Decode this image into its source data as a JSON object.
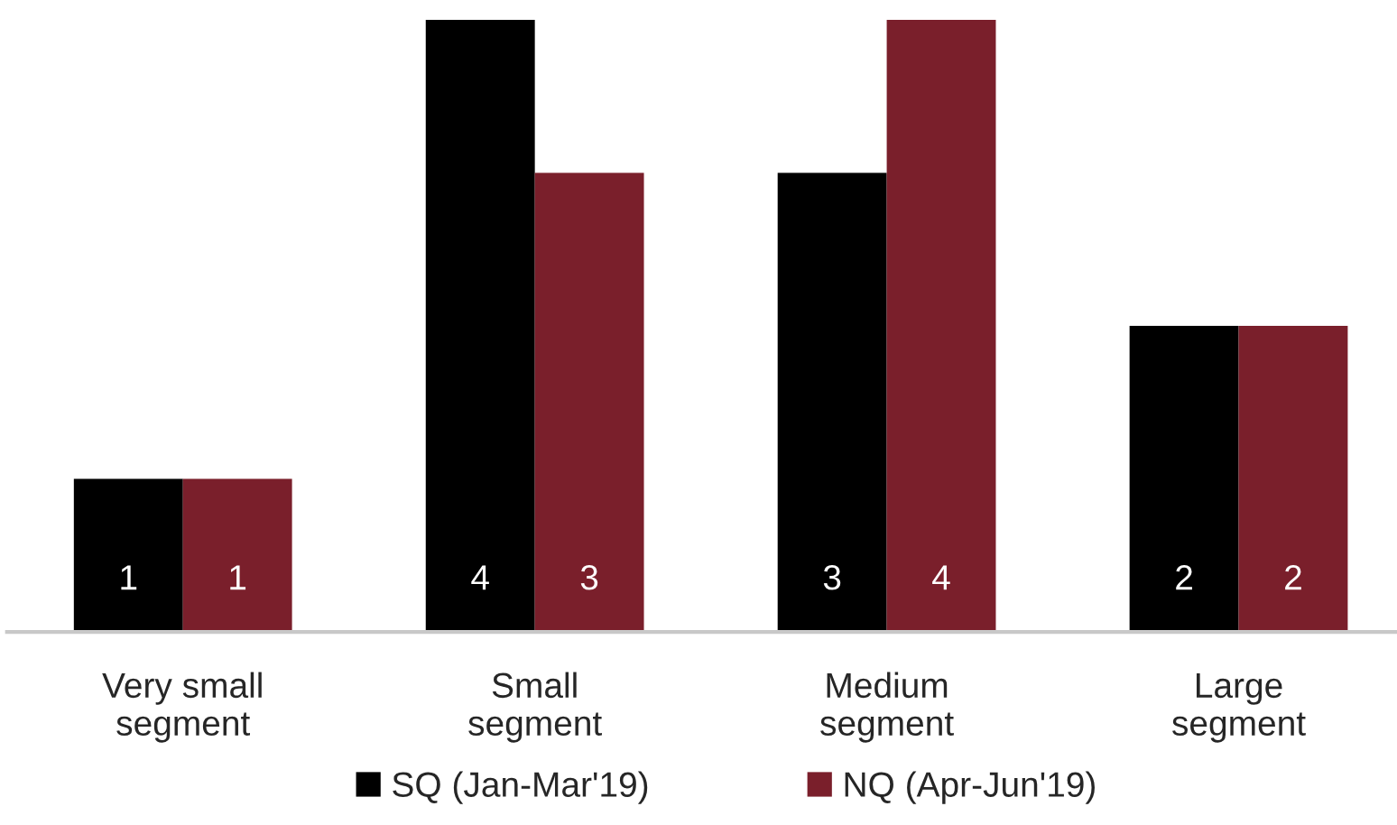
{
  "chart_data": {
    "type": "bar",
    "categories": [
      "Very small\nsegment",
      "Small\nsegment",
      "Medium\nsegment",
      "Large\nsegment"
    ],
    "series": [
      {
        "name": "SQ (Jan-Mar'19)",
        "color": "#000000",
        "values": [
          1,
          4,
          3,
          2
        ]
      },
      {
        "name": "NQ (Apr-Jun'19)",
        "color": "#7a1f2b",
        "values": [
          1,
          3,
          4,
          2
        ]
      }
    ],
    "ylim": [
      0,
      4
    ],
    "tick_labels": "x",
    "data_labels": true,
    "grid": false,
    "legend": "bottom"
  }
}
